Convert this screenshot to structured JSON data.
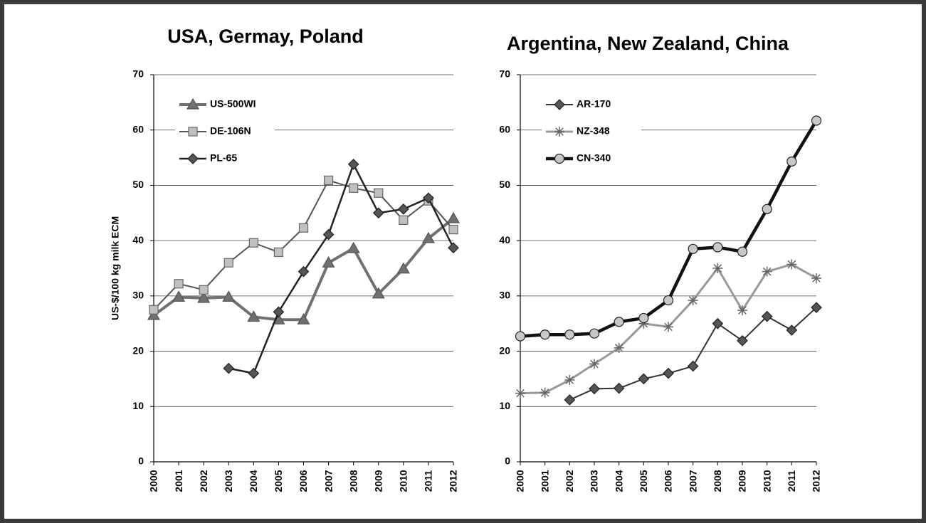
{
  "chart_data": [
    {
      "type": "line",
      "title": "USA, Germay, Poland",
      "ylabel": "US-$/100 kg milk ECM",
      "categories": [
        "2000",
        "2001",
        "2002",
        "2003",
        "2004",
        "2005",
        "2006",
        "2007",
        "2008",
        "2009",
        "2010",
        "2011",
        "2012"
      ],
      "ylim": [
        0,
        70
      ],
      "yticks": [
        0,
        10,
        20,
        30,
        40,
        50,
        60,
        70
      ],
      "grid": true,
      "legend": "upper left",
      "series": [
        {
          "name": "US-500WI",
          "color": "#707070",
          "marker": "triangle",
          "line_width": 4,
          "values": [
            26.5,
            29.8,
            29.6,
            29.8,
            26.2,
            25.7,
            25.7,
            36,
            38.6,
            30.4,
            34.9,
            40.4,
            44
          ]
        },
        {
          "name": "DE-106N",
          "color": "#555555",
          "marker": "square",
          "line_width": 2,
          "values": [
            27.5,
            32.2,
            31.1,
            36,
            39.6,
            37.9,
            42.3,
            50.9,
            49.5,
            48.6,
            43.7,
            47.2,
            42
          ]
        },
        {
          "name": "PL-65",
          "color": "#222222",
          "marker": "diamond",
          "line_width": 2.5,
          "values": [
            null,
            null,
            null,
            16.9,
            16,
            27.1,
            34.4,
            41.1,
            53.8,
            45,
            45.7,
            47.7,
            38.7
          ]
        }
      ]
    },
    {
      "type": "line",
      "title": "Argentina, New Zealand, China",
      "categories": [
        "2000",
        "2001",
        "2002",
        "2003",
        "2004",
        "2005",
        "2006",
        "2007",
        "2008",
        "2009",
        "2010",
        "2011",
        "2012"
      ],
      "ylim": [
        0,
        70
      ],
      "yticks": [
        0,
        10,
        20,
        30,
        40,
        50,
        60,
        70
      ],
      "grid": true,
      "legend": "upper left",
      "series": [
        {
          "name": "AR-170",
          "color": "#333333",
          "marker": "diamond",
          "line_width": 2,
          "values": [
            null,
            null,
            11.2,
            13.2,
            13.3,
            15,
            16,
            17.3,
            25,
            21.9,
            26.3,
            23.8,
            27.9
          ]
        },
        {
          "name": "NZ-348",
          "color": "#999999",
          "marker": "star",
          "line_width": 3,
          "values": [
            12.4,
            12.5,
            14.8,
            17.7,
            20.6,
            25,
            24.4,
            29.2,
            35,
            27.4,
            34.4,
            35.7,
            33.2
          ]
        },
        {
          "name": "CN-340",
          "color": "#111111",
          "marker": "circle",
          "line_width": 4.5,
          "values": [
            22.7,
            23,
            23,
            23.2,
            25.3,
            26,
            29.2,
            38.5,
            38.8,
            38,
            45.7,
            54.3,
            61.7
          ]
        }
      ]
    }
  ]
}
